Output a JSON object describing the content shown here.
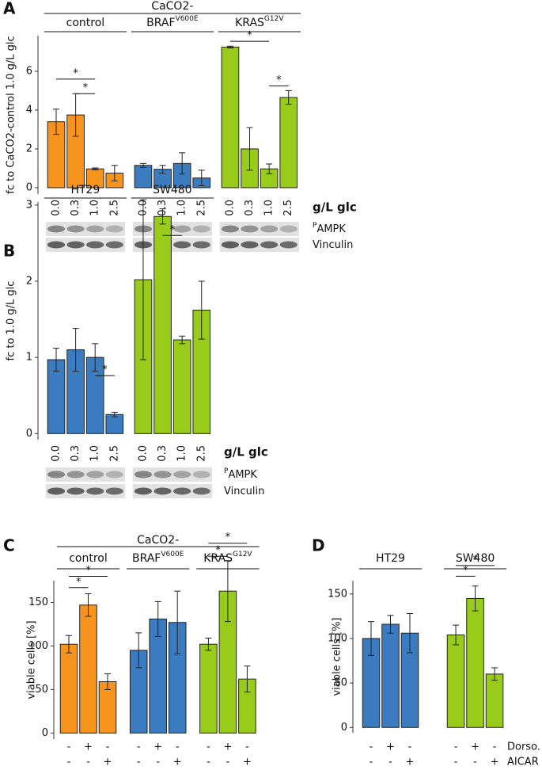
{
  "chart_data": [
    {
      "type": "bar",
      "panel": "A",
      "super_title": "CaCO2-",
      "ylabel": "fc to CaCO2-control 1.0 g/L glc",
      "ylim": [
        -0.33,
        7.84
      ],
      "yticks": [
        0,
        2,
        4,
        6
      ],
      "xlabel": "g/L glc",
      "categories": [
        "0.0",
        "0.3",
        "1.0",
        "2.5",
        "0.0",
        "0.3",
        "1.0",
        "2.5",
        "0.0",
        "0.3",
        "1.0",
        "2.5"
      ],
      "blot_labels": [
        {
          "sup": "P",
          "text": "AMPK"
        },
        {
          "text": "Vinculin"
        }
      ],
      "groups": [
        {
          "name": "control",
          "color": "#f7941d",
          "values": [
            3.4,
            3.75,
            0.97,
            0.75
          ],
          "errors": [
            0.65,
            1.1,
            0.05,
            0.4
          ],
          "brackets": [
            {
              "from": 0,
              "to": 2,
              "y": 5.6,
              "label": "*"
            },
            {
              "from": 1,
              "to": 2,
              "y": 4.85,
              "label": "*"
            }
          ]
        },
        {
          "name": "BRAF",
          "sup": "V600E",
          "color": "#3b7cc0",
          "values": [
            1.15,
            0.95,
            1.25,
            0.5
          ],
          "errors": [
            0.1,
            0.2,
            0.55,
            0.4
          ]
        },
        {
          "name": "KRAS",
          "sup": "G12V",
          "color": "#99cc1a",
          "values": [
            7.25,
            2.0,
            0.97,
            4.65
          ],
          "errors": [
            0.05,
            1.1,
            0.25,
            0.35
          ],
          "brackets": [
            {
              "from": 0,
              "to": 2,
              "y": 7.55,
              "label": "*"
            },
            {
              "from": 2,
              "to": 3,
              "y": 5.25,
              "label": "*"
            }
          ]
        }
      ]
    },
    {
      "type": "bar",
      "panel": "B",
      "ylabel": "fc to 1.0 g/L glc",
      "ylim": [
        -0.08,
        3.04
      ],
      "yticks": [
        0,
        1,
        2,
        3
      ],
      "xlabel": "g/L glc",
      "categories": [
        "0.0",
        "0.3",
        "1.0",
        "2.5",
        "0.0",
        "0.3",
        "1.0",
        "2.5"
      ],
      "blot_labels": [
        {
          "sup": "P",
          "text": "AMPK"
        },
        {
          "text": "Vinculin"
        }
      ],
      "groups": [
        {
          "name": "HT29",
          "color": "#3b7cc0",
          "values": [
            0.97,
            1.1,
            1.0,
            0.25
          ],
          "errors": [
            0.15,
            0.28,
            0.18,
            0.03
          ],
          "brackets": [
            {
              "from": 2,
              "to": 3,
              "y": 0.76,
              "label": "*"
            }
          ]
        },
        {
          "name": "SW480",
          "color": "#99cc1a",
          "values": [
            2.02,
            2.85,
            1.23,
            1.62
          ],
          "errors": [
            1.05,
            0.1,
            0.05,
            0.38
          ],
          "brackets": [
            {
              "from": 1,
              "to": 2,
              "y": 2.6,
              "label": "*"
            }
          ]
        }
      ]
    },
    {
      "type": "bar",
      "panel": "C",
      "super_title": "CaCO2-",
      "ylabel": "viable cells [%]",
      "ylim": [
        -7,
        175
      ],
      "yticks": [
        0,
        50,
        100,
        150
      ],
      "conditions": [
        {
          "marks": [
            "-",
            "+",
            "-",
            "-",
            "+",
            "-",
            "-",
            "+",
            "-"
          ]
        },
        {
          "marks": [
            "-",
            "-",
            "+",
            "-",
            "-",
            "+",
            "-",
            "-",
            "+"
          ]
        }
      ],
      "groups": [
        {
          "name": "control",
          "color": "#f7941d",
          "values": [
            102,
            147,
            59
          ],
          "errors": [
            10,
            13,
            9
          ],
          "brackets": [
            {
              "from": 0,
              "to": 1,
              "y": 167,
              "label": "*"
            },
            {
              "from": 0,
              "to": 2,
              "y": 180,
              "label": "*"
            }
          ]
        },
        {
          "name": "BRAF",
          "sup": "V600E",
          "color": "#3b7cc0",
          "values": [
            95,
            131,
            127
          ],
          "errors": [
            20,
            20,
            36
          ]
        },
        {
          "name": "KRAS",
          "sup": "G12V",
          "color": "#99cc1a",
          "values": [
            102,
            163,
            62
          ],
          "errors": [
            7,
            35,
            15
          ],
          "brackets": [
            {
              "from": 0,
              "to": 1,
              "y": 203,
              "label": "*"
            },
            {
              "from": 0,
              "to": 2,
              "y": 218,
              "label": "*"
            }
          ]
        }
      ]
    },
    {
      "type": "bar",
      "panel": "D",
      "ylabel": "viable cells [%]",
      "ylim": [
        -6,
        165
      ],
      "yticks": [
        0,
        50,
        100,
        150
      ],
      "conditions": [
        {
          "name": "Dorso.",
          "marks": [
            "-",
            "+",
            "-",
            "-",
            "+",
            "-"
          ]
        },
        {
          "name": "AICAR",
          "marks": [
            "-",
            "-",
            "+",
            "-",
            "-",
            "+"
          ]
        }
      ],
      "groups": [
        {
          "name": "HT29",
          "color": "#3b7cc0",
          "values": [
            100,
            116,
            106
          ],
          "errors": [
            19,
            10,
            22
          ]
        },
        {
          "name": "SW480",
          "color": "#99cc1a",
          "values": [
            104,
            145,
            60
          ],
          "errors": [
            11,
            14,
            7
          ],
          "brackets": [
            {
              "from": 0,
              "to": 1,
              "y": 170,
              "label": "*"
            },
            {
              "from": 0,
              "to": 2,
              "y": 182,
              "label": "*"
            }
          ]
        }
      ]
    }
  ]
}
